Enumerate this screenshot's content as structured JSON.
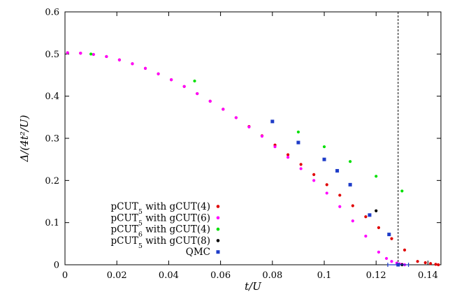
{
  "chart_data": {
    "type": "scatter",
    "xlabel": "t/U",
    "ylabel": "Δ/(4t²/U)",
    "xlim": [
      0,
      0.145
    ],
    "ylim": [
      0,
      0.6
    ],
    "xticks": [
      "0",
      "0.02",
      "0.04",
      "0.06",
      "0.08",
      "0.1",
      "0.12",
      "0.14"
    ],
    "yticks": [
      "0",
      "0.1",
      "0.2",
      "0.3",
      "0.4",
      "0.5",
      "0.6"
    ],
    "grid": false,
    "legend_position": "bottom-left",
    "vertical_line_x": 0.1285,
    "series": [
      {
        "name": "pCUT5 with gCUT(4)",
        "label_base": "pCUT",
        "label_sub": "5",
        "label_rest": " with gCUT(4)",
        "color": "#e00000",
        "marker": "dot",
        "x": [
          0.001,
          0.006,
          0.011,
          0.016,
          0.021,
          0.026,
          0.031,
          0.036,
          0.041,
          0.046,
          0.051,
          0.056,
          0.061,
          0.066,
          0.071,
          0.076,
          0.081,
          0.086,
          0.091,
          0.096,
          0.101,
          0.106,
          0.111,
          0.116,
          0.121,
          0.126,
          0.131,
          0.136,
          0.139,
          0.141,
          0.143,
          0.144
        ],
        "y": [
          0.503,
          0.502,
          0.499,
          0.494,
          0.486,
          0.477,
          0.466,
          0.453,
          0.439,
          0.423,
          0.406,
          0.388,
          0.369,
          0.349,
          0.328,
          0.306,
          0.284,
          0.261,
          0.238,
          0.214,
          0.19,
          0.165,
          0.14,
          0.114,
          0.088,
          0.062,
          0.035,
          0.008,
          0.005,
          0.003,
          0.001,
          0.0
        ]
      },
      {
        "name": "pCUT5 with gCUT(6)",
        "label_base": "pCUT",
        "label_sub": "5",
        "label_rest": " with gCUT(6)",
        "color": "#ff00ff",
        "marker": "dot",
        "x": [
          0.001,
          0.006,
          0.011,
          0.016,
          0.021,
          0.026,
          0.031,
          0.036,
          0.041,
          0.046,
          0.051,
          0.056,
          0.061,
          0.066,
          0.071,
          0.076,
          0.081,
          0.086,
          0.091,
          0.096,
          0.101,
          0.106,
          0.111,
          0.116,
          0.121,
          0.124,
          0.126,
          0.128,
          0.129,
          0.13,
          0.131
        ],
        "y": [
          0.503,
          0.502,
          0.499,
          0.494,
          0.486,
          0.477,
          0.466,
          0.453,
          0.439,
          0.423,
          0.406,
          0.388,
          0.369,
          0.349,
          0.327,
          0.305,
          0.28,
          0.255,
          0.228,
          0.2,
          0.17,
          0.138,
          0.104,
          0.068,
          0.03,
          0.015,
          0.008,
          0.004,
          0.002,
          0.001,
          0.0
        ]
      },
      {
        "name": "pCUT6 with gCUT(4)",
        "label_base": "pCUT",
        "label_sub": "6",
        "label_rest": " with gCUT(4)",
        "color": "#00e000",
        "marker": "dot",
        "x": [
          0.01,
          0.05,
          0.09,
          0.1,
          0.11,
          0.12,
          0.13
        ],
        "y": [
          0.5,
          0.436,
          0.315,
          0.28,
          0.245,
          0.21,
          0.175
        ]
      },
      {
        "name": "pCUT5 with gCUT(8)",
        "label_base": "pCUT",
        "label_sub": "5",
        "label_rest": " with gCUT(8)",
        "color": "#000000",
        "marker": "dot",
        "x": [
          0.1,
          0.11,
          0.12,
          0.13
        ],
        "y": [
          0.25,
          0.19,
          0.128,
          0.0
        ]
      },
      {
        "name": "QMC",
        "label_base": "QMC",
        "label_sub": "",
        "label_rest": "",
        "color": "#1e3cc8",
        "marker": "square",
        "x": [
          0.08,
          0.09,
          0.1,
          0.105,
          0.11,
          0.1175,
          0.125,
          0.1285
        ],
        "y": [
          0.34,
          0.29,
          0.25,
          0.223,
          0.19,
          0.118,
          0.072,
          0.0
        ],
        "xerr": [
          0,
          0,
          0,
          0,
          0,
          0,
          0,
          0.004
        ]
      }
    ]
  }
}
